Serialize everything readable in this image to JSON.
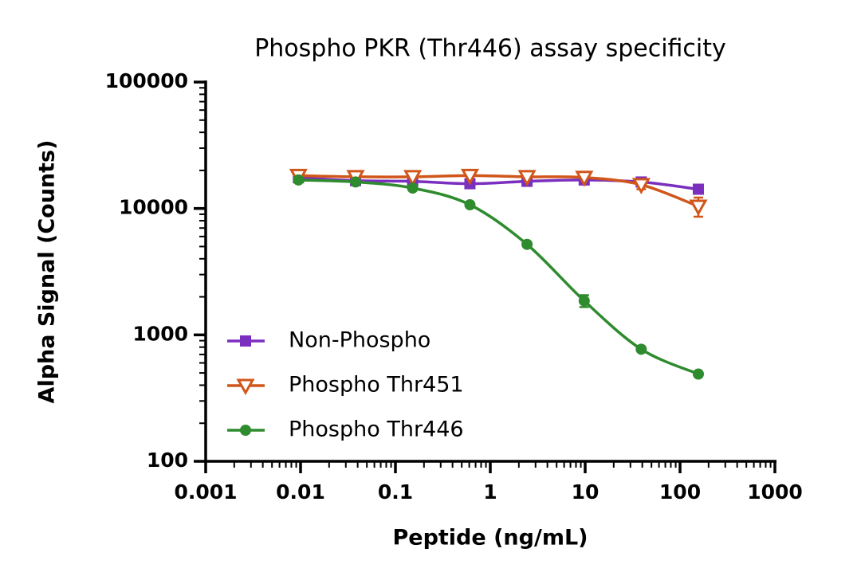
{
  "chart_data": {
    "type": "line",
    "title": "Phospho PKR (Thr446) assay specificity",
    "x_label": "Peptide (ng/mL)",
    "y_label": "Alpha Signal (Counts)",
    "x_scale": "log",
    "y_scale": "log",
    "xlim": [
      0.001,
      1000
    ],
    "ylim": [
      100,
      100000
    ],
    "xticks": [
      0.001,
      0.01,
      0.1,
      1,
      10,
      100,
      1000
    ],
    "yticks": [
      100,
      1000,
      10000,
      100000
    ],
    "legend": "lower left",
    "x": [
      0.0095,
      0.038,
      0.152,
      0.61,
      2.44,
      9.77,
      39,
      156
    ],
    "series": [
      {
        "name": "Non-Phospho",
        "color": "#7b2fbe",
        "marker": "square",
        "values": [
          17500,
          16600,
          16400,
          15700,
          16400,
          16800,
          16200,
          14200
        ]
      },
      {
        "name": "Phospho Thr451",
        "color": "#d0561a",
        "marker": "triangle-down",
        "values": [
          18200,
          17800,
          17800,
          18200,
          17800,
          17600,
          15400,
          10400
        ],
        "errors": [
          null,
          null,
          null,
          null,
          null,
          null,
          1200,
          1800
        ]
      },
      {
        "name": "Phospho Thr446",
        "color": "#2e8b2e",
        "marker": "circle",
        "values": [
          16800,
          16200,
          14500,
          10700,
          5200,
          1860,
          770,
          490
        ],
        "errors": [
          null,
          null,
          null,
          null,
          null,
          200,
          null,
          null
        ]
      }
    ]
  }
}
